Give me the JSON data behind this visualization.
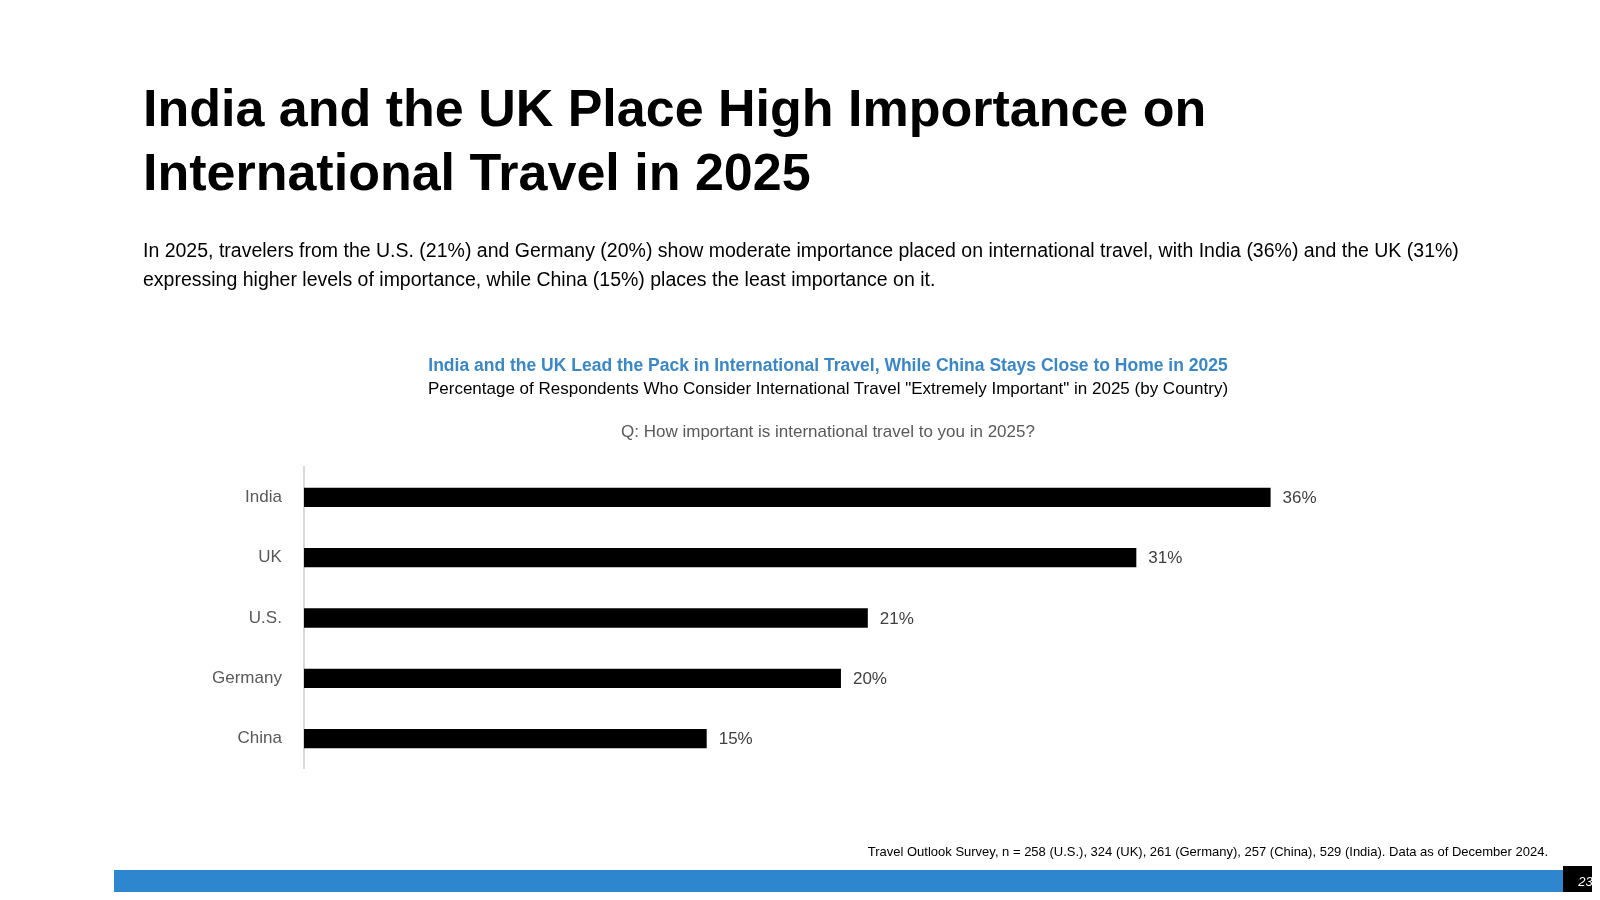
{
  "chart_data": {
    "type": "bar",
    "orientation": "horizontal",
    "title": "India and the UK Place High Importance on International Travel in 2025",
    "subtitle": "In 2025, travelers from the U.S. (21%) and Germany (20%) show moderate importance placed on international travel, with India (36%) and the UK (31%) expressing higher levels of importance, while China (15%) places the least importance on it.",
    "annotations": [
      "India and the UK Lead the Pack in International Travel, While China Stays Close to Home in 2025",
      "Percentage of Respondents Who Consider International Travel \"Extremely Important\" in 2025 (by Country)",
      "Q: How important is international travel to you in 2025?",
      "Travel Outlook Survey, n = 258 (U.S.), 324 (UK), 261 (Germany), 257 (China), 529 (India). Data as of December 2024.",
      "23"
    ],
    "categories": [
      "India",
      "UK",
      "U.S.",
      "Germany",
      "China"
    ],
    "values": [
      36,
      31,
      21,
      20,
      15
    ],
    "value_labels": [
      "36%",
      "31%",
      "21%",
      "20%",
      "15%"
    ],
    "color": "#000000",
    "grid": false,
    "legend": false,
    "tick_labels": "y"
  }
}
